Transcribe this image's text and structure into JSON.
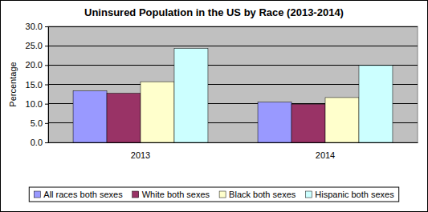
{
  "chart_data": {
    "type": "bar",
    "title": "Uninsured Population in the US by Race (2013-2014)",
    "y_label": "Percentage",
    "categories": [
      "2013",
      "2014"
    ],
    "series": [
      {
        "name": "All races both sexes",
        "color": "#9999ff",
        "values": [
          13.3,
          10.4
        ]
      },
      {
        "name": "White both sexes",
        "color": "#993366",
        "values": [
          12.7,
          9.9
        ]
      },
      {
        "name": "Black both sexes",
        "color": "#ffffcc",
        "values": [
          15.7,
          11.6
        ]
      },
      {
        "name": "Hispanic both sexes",
        "color": "#ccffff",
        "values": [
          24.3,
          19.9
        ]
      }
    ],
    "ylim": [
      0,
      30
    ],
    "yticks": [
      {
        "value": 0,
        "label": "0.0"
      },
      {
        "value": 5,
        "label": "5.0"
      },
      {
        "value": 10,
        "label": "10.0"
      },
      {
        "value": 15,
        "label": "15.0"
      },
      {
        "value": 20,
        "label": "20.0"
      },
      {
        "value": 25,
        "label": "25.0"
      },
      {
        "value": 30,
        "label": "30.0"
      }
    ],
    "grid": true,
    "legend": "bottom"
  }
}
